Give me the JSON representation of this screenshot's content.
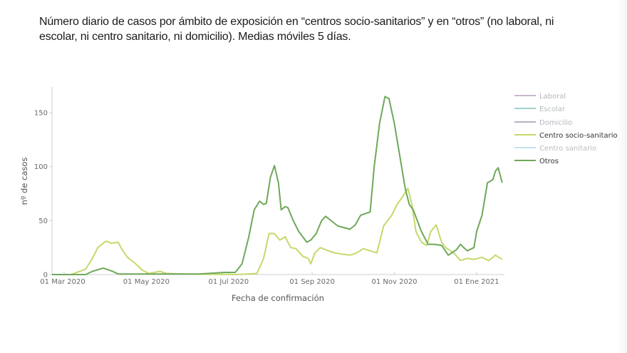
{
  "title": {
    "line1": "Número diario de casos por ámbito de exposición en “centros socio-sanitarios” y en “otros” (no laboral, ni",
    "line2": "escolar, ni centro sanitario, ni domicilio). Medias móviles 5 días."
  },
  "chart_data": {
    "type": "line",
    "title": "Número diario de casos por ámbito de exposición en “centros socio-sanitarios” y en “otros” (no laboral, ni escolar, ni centro sanitario, ni domicilio). Medias móviles 5 días.",
    "xlabel": "Fecha de confirmación",
    "ylabel": "nº de casos",
    "ylim": [
      0,
      175
    ],
    "yticks": [
      0,
      50,
      100,
      150
    ],
    "xticks": [
      "01 Mar 2020",
      "01 May 2020",
      "01 Jul 2020",
      "01 Sep 2020",
      "01 Nov 2020",
      "01 Ene 2021"
    ],
    "xtick_day_offsets": [
      0,
      61,
      122,
      184,
      245,
      306
    ],
    "x_unit": "days since 01 Mar 2020",
    "grid": false,
    "legend_position": "right",
    "legend": [
      {
        "name": "Laboral",
        "color": "#c9b7cf",
        "active": false
      },
      {
        "name": "Escolar",
        "color": "#9fd1c9",
        "active": false
      },
      {
        "name": "Domicilio",
        "color": "#b3b3c4",
        "active": false
      },
      {
        "name": "Centro socio-sanitario",
        "color": "#c5d96a",
        "active": true
      },
      {
        "name": "Centro sanitario",
        "color": "#c6e0ec",
        "active": false
      },
      {
        "name": "Otros",
        "color": "#6fa85a",
        "active": true
      }
    ],
    "series": [
      {
        "name": "Centro socio-sanitario",
        "color": "#c5d96a",
        "x": [
          -9,
          5,
          16,
          21,
          25,
          31,
          35,
          40,
          43,
          47,
          53,
          58,
          63,
          71,
          76,
          90,
          128,
          143,
          148,
          152,
          156,
          160,
          164,
          168,
          172,
          177,
          181,
          183,
          186,
          190,
          196,
          201,
          206,
          212,
          217,
          222,
          232,
          237,
          243,
          247,
          251,
          255,
          258,
          261,
          265,
          269,
          272,
          276,
          280,
          283,
          289,
          294,
          299,
          304,
          310,
          315,
          320,
          325
        ],
        "values": [
          0,
          0,
          5,
          15,
          25,
          31,
          29,
          30,
          23,
          16,
          10,
          4,
          1,
          3,
          1,
          0.5,
          0,
          1,
          15,
          38,
          38,
          32,
          35,
          25,
          24,
          17,
          15,
          10,
          20,
          25,
          22,
          20,
          19,
          18,
          20,
          24,
          20,
          45,
          55,
          65,
          72,
          80,
          65,
          40,
          30,
          27,
          40,
          46,
          30,
          25,
          20,
          13,
          15,
          14,
          16,
          13,
          18,
          14
        ]
      },
      {
        "name": "Otros",
        "color": "#6fa85a",
        "x": [
          -9,
          16,
          21,
          29,
          36,
          40,
          60,
          100,
          119,
          127,
          132,
          137,
          141,
          145,
          148,
          150,
          153,
          156,
          159,
          161,
          164,
          166,
          170,
          174,
          180,
          183,
          187,
          191,
          194,
          198,
          203,
          209,
          212,
          216,
          220,
          227,
          230,
          234,
          238,
          241,
          245,
          249,
          253,
          256,
          259,
          265,
          270,
          275,
          280,
          285,
          291,
          294,
          299,
          304,
          306,
          310,
          314,
          318,
          320,
          322,
          325
        ],
        "values": [
          0,
          0,
          3,
          6,
          3,
          0.5,
          0.5,
          0.5,
          2,
          2,
          10,
          35,
          60,
          68,
          65,
          66,
          90,
          101,
          85,
          60,
          63,
          62,
          50,
          40,
          30,
          32,
          38,
          50,
          54,
          50,
          45,
          43,
          42,
          46,
          55,
          58,
          100,
          140,
          165,
          163,
          140,
          110,
          80,
          65,
          60,
          40,
          28,
          28,
          27,
          18,
          23,
          28,
          22,
          25,
          40,
          55,
          85,
          88,
          96,
          99,
          85
        ]
      }
    ]
  },
  "legend_items": [
    {
      "label": "Laboral"
    },
    {
      "label": "Escolar"
    },
    {
      "label": "Domicilio"
    },
    {
      "label": "Centro socio-sanitario"
    },
    {
      "label": "Centro sanitario"
    },
    {
      "label": "Otros"
    }
  ],
  "axes": {
    "y_title": "nº de casos",
    "x_title": "Fecha de confirmación",
    "y_ticks": [
      "0",
      "50",
      "100",
      "150"
    ],
    "x_ticks": [
      "01 Mar 2020",
      "01 May 2020",
      "01 Jul 2020",
      "01 Sep 2020",
      "01 Nov 2020",
      "01 Ene 2021"
    ]
  }
}
